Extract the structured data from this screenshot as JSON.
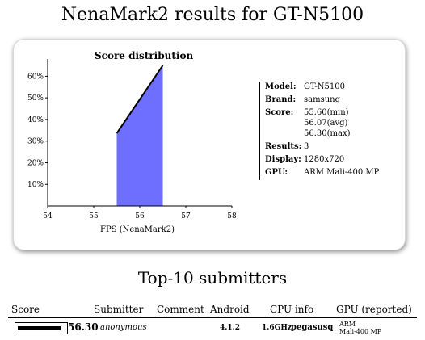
{
  "page": {
    "title": "NenaMark2 results for GT-N5100"
  },
  "chart_data": {
    "type": "area",
    "title": "Score distribution",
    "xlabel": "FPS (NenaMark2)",
    "ylabel": "",
    "x_ticks": [
      54,
      55,
      56,
      57,
      58
    ],
    "y_ticks": [
      10,
      20,
      30,
      40,
      50,
      60
    ],
    "y_tick_labels": [
      "10%",
      "20%",
      "30%",
      "40%",
      "50%",
      "60%"
    ],
    "xlim": [
      54,
      58
    ],
    "ylim": [
      0,
      65
    ],
    "x": [
      55.5,
      56.5
    ],
    "y": [
      33.6,
      65
    ],
    "fill_color": "#6f6fff",
    "line_color": "#000000"
  },
  "specs": [
    {
      "key": "Model:",
      "value": "GT-N5100"
    },
    {
      "key": "Brand:",
      "value": "samsung"
    },
    {
      "key": "Score:",
      "value": "55.60(min) 56.07(avg) 56.30(max)"
    },
    {
      "key": "Results:",
      "value": "3"
    },
    {
      "key": "Display:",
      "value": "1280x720"
    },
    {
      "key": "GPU:",
      "value": "ARM Mali-400 MP"
    }
  ],
  "submitters": {
    "title": "Top-10 submitters",
    "columns": [
      "Score",
      "Submitter",
      "Comment",
      "Android",
      "CPU info",
      "GPU (reported)"
    ],
    "rows": [
      {
        "score": "56.30",
        "score_fraction": 0.92,
        "submitter": "anonymous",
        "comment": "",
        "android": "4.1.2",
        "cpu_speed": "1.6GHz",
        "cpu_name": "pegasusq",
        "gpu_vendor": "ARM",
        "gpu_model": "Mali-400 MP"
      }
    ]
  }
}
